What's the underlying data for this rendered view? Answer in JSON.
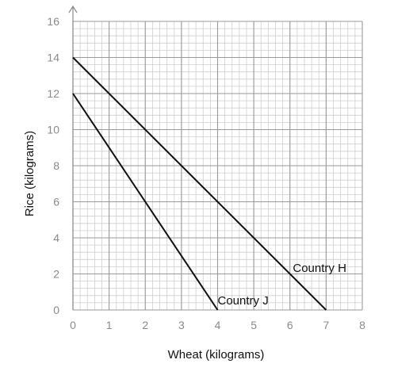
{
  "chart_data": {
    "type": "line",
    "xlabel": "Wheat (kilograms)",
    "ylabel": "Rice (kilograms)",
    "xlim": [
      0,
      8
    ],
    "ylim": [
      0,
      16
    ],
    "x_ticks": [
      "0",
      "1",
      "2",
      "3",
      "4",
      "5",
      "6",
      "7",
      "8"
    ],
    "y_ticks": [
      "0",
      "2",
      "4",
      "6",
      "8",
      "10",
      "12",
      "14",
      "16"
    ],
    "grid": true,
    "minor_grid_step_x": 0.2,
    "minor_grid_step_y": 0.4,
    "series": [
      {
        "name": "Country H",
        "x": [
          0,
          7
        ],
        "y": [
          14,
          0
        ]
      },
      {
        "name": "Country J",
        "x": [
          0,
          4
        ],
        "y": [
          12,
          0
        ]
      }
    ],
    "colors": {
      "line": "#111111",
      "major_grid": "#9a9a9a",
      "minor_grid": "#cfcfcf",
      "axis": "#888888"
    }
  }
}
